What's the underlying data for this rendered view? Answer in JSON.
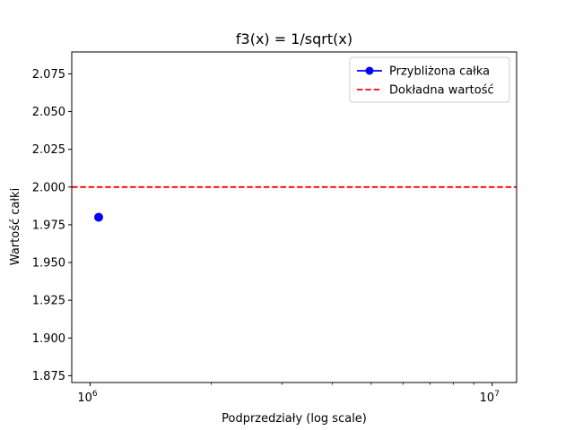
{
  "chart_data": {
    "type": "line",
    "title": "f3(x) = 1/sqrt(x)",
    "xlabel": "Podprzedziały (log scale)",
    "ylabel": "Wartość całki",
    "xscale": "log",
    "xlim": [
      900000,
      11500000
    ],
    "ylim": [
      1.8705,
      2.0895
    ],
    "x_ticks": [
      {
        "value": 1000000,
        "label": "10",
        "exponent": "6"
      },
      {
        "value": 10000000,
        "label": "10",
        "exponent": "7"
      }
    ],
    "y_ticks": [
      "1.875",
      "1.900",
      "1.925",
      "1.950",
      "1.975",
      "2.000",
      "2.025",
      "2.050",
      "2.075"
    ],
    "series": [
      {
        "name": "Przybliżona całka",
        "style": "line-marker",
        "color": "#0000ff",
        "points": [
          {
            "x": 1050000,
            "y": 1.98
          }
        ]
      },
      {
        "name": "Dokładna wartość",
        "style": "dashed-hline",
        "color": "#ff0000",
        "y": 2.0
      }
    ],
    "legend_position": "top-right",
    "grid": false
  }
}
